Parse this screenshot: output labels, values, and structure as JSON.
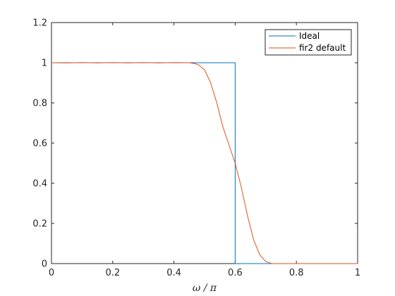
{
  "chart_data": {
    "type": "line",
    "title": "",
    "xlabel": "ω / π",
    "ylabel": "",
    "xlim": [
      0,
      1
    ],
    "ylim": [
      0,
      1.2
    ],
    "xticks": [
      0,
      0.2,
      0.4,
      0.6,
      0.8,
      1
    ],
    "xtick_labels": [
      "0",
      "0.2",
      "0.4",
      "0.6",
      "0.8",
      "1"
    ],
    "yticks": [
      0,
      0.2,
      0.4,
      0.6,
      0.8,
      1,
      1.2
    ],
    "ytick_labels": [
      "0",
      "0.2",
      "0.4",
      "0.6",
      "0.8",
      "1",
      "1.2"
    ],
    "grid": false,
    "legend_position": "top-right",
    "series": [
      {
        "name": "Ideal",
        "color": "#0072BD",
        "x": [
          0,
          0.6,
          0.6,
          1
        ],
        "y": [
          1,
          1,
          0,
          0
        ]
      },
      {
        "name": "fir2 default",
        "color": "#D95319",
        "x": [
          0,
          0.05,
          0.1,
          0.15,
          0.2,
          0.25,
          0.3,
          0.35,
          0.4,
          0.45,
          0.47,
          0.48,
          0.5,
          0.52,
          0.54,
          0.56,
          0.58,
          0.6,
          0.62,
          0.64,
          0.66,
          0.68,
          0.7,
          0.72,
          0.75,
          0.8,
          0.9,
          1
        ],
        "y": [
          1,
          0.999,
          1.001,
          0.999,
          1.001,
          0.999,
          1.001,
          0.999,
          1.001,
          1.0,
          0.995,
          0.99,
          0.965,
          0.9,
          0.8,
          0.68,
          0.59,
          0.5,
          0.38,
          0.24,
          0.12,
          0.045,
          0.01,
          0.0,
          0.0,
          0.0,
          0.0,
          0.0
        ]
      }
    ]
  }
}
